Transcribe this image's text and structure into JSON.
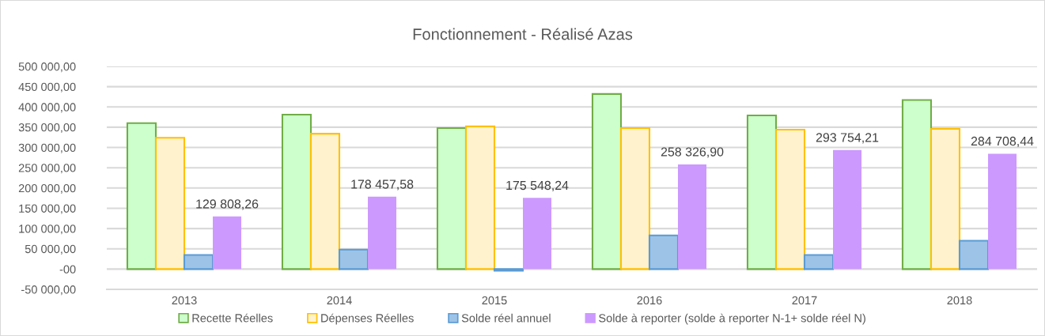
{
  "chart_data": {
    "type": "bar",
    "title": "Fonctionnement - Réalisé Azas",
    "categories": [
      "2013",
      "2014",
      "2015",
      "2016",
      "2017",
      "2018"
    ],
    "series": [
      {
        "name": "Recette Réelles",
        "color": "#ccffcc",
        "values": [
          360000,
          381000,
          348000,
          432000,
          379000,
          417000
        ]
      },
      {
        "name": "Dépenses Réelles",
        "color": "#fff2cc",
        "values": [
          324000,
          334000,
          352000,
          348000,
          344000,
          346000
        ]
      },
      {
        "name": "Solde réel annuel",
        "color": "#9dc3e6",
        "values": [
          35000,
          48000,
          -4000,
          83000,
          35000,
          70000
        ]
      },
      {
        "name": "Solde à reporter (solde à reporter N-1+ solde réel N)",
        "color": "#cc99ff",
        "values": [
          129808.26,
          178457.58,
          175548.24,
          258326.9,
          293754.21,
          284708.44
        ],
        "value_labels": [
          "129 808,26",
          "178 457,58",
          "175 548,24",
          "258 326,90",
          "293 754,21",
          "284 708,44"
        ]
      }
    ],
    "ylim": [
      -50000,
      500000
    ],
    "yticks": [
      {
        "value": -50000,
        "label": "-50 000,00"
      },
      {
        "value": 0,
        "label": "-00"
      },
      {
        "value": 50000,
        "label": "50 000,00"
      },
      {
        "value": 100000,
        "label": "100 000,00"
      },
      {
        "value": 150000,
        "label": "150 000,00"
      },
      {
        "value": 200000,
        "label": "200 000,00"
      },
      {
        "value": 250000,
        "label": "250 000,00"
      },
      {
        "value": 300000,
        "label": "300 000,00"
      },
      {
        "value": 350000,
        "label": "350 000,00"
      },
      {
        "value": 400000,
        "label": "400 000,00"
      },
      {
        "value": 450000,
        "label": "450 000,00"
      },
      {
        "value": 500000,
        "label": "500 000,00"
      }
    ],
    "grid": "y",
    "legend": "bottom"
  }
}
